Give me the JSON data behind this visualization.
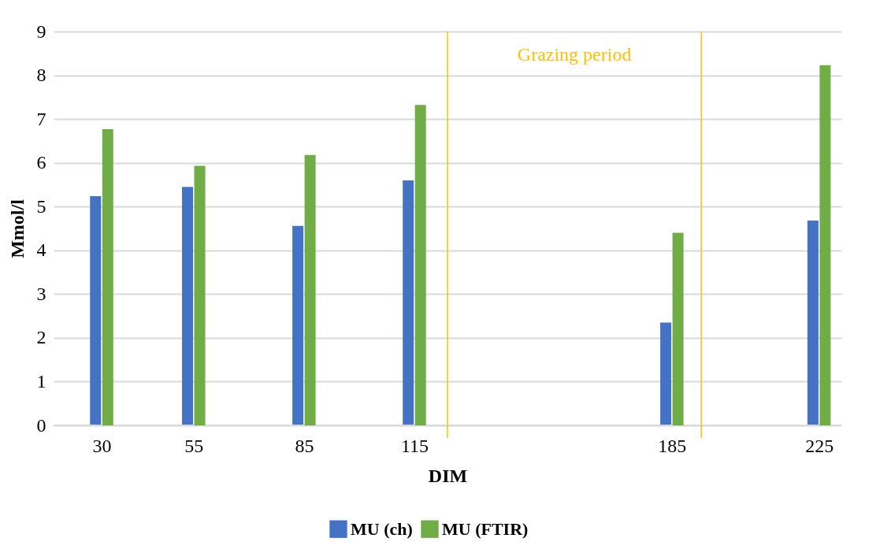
{
  "chart_data": {
    "type": "bar",
    "xlabel": "DIM",
    "ylabel": "Mmol/l",
    "x": [
      30,
      55,
      85,
      115,
      185,
      225
    ],
    "xlim": [
      18,
      230
    ],
    "xticks": [
      30,
      55,
      85,
      115,
      185,
      225
    ],
    "ylim": [
      0,
      9
    ],
    "yticks": [
      0,
      1,
      2,
      3,
      4,
      5,
      6,
      7,
      8,
      9
    ],
    "series": [
      {
        "name": "MU (ch)",
        "color": "#4472c4",
        "values": [
          5.24,
          5.45,
          4.56,
          5.6,
          2.35,
          4.68
        ]
      },
      {
        "name": "MU (FTIR)",
        "color": "#70ad47",
        "values": [
          6.77,
          5.93,
          6.18,
          7.32,
          4.4,
          8.23
        ]
      }
    ],
    "ref_lines": [
      {
        "axis": "x",
        "value": 124,
        "color": "#ffc000"
      },
      {
        "axis": "x",
        "value": 193,
        "color": "#ffc000"
      }
    ],
    "annotations": [
      "Grazing period"
    ],
    "grid": "y",
    "legend": "bottom"
  }
}
